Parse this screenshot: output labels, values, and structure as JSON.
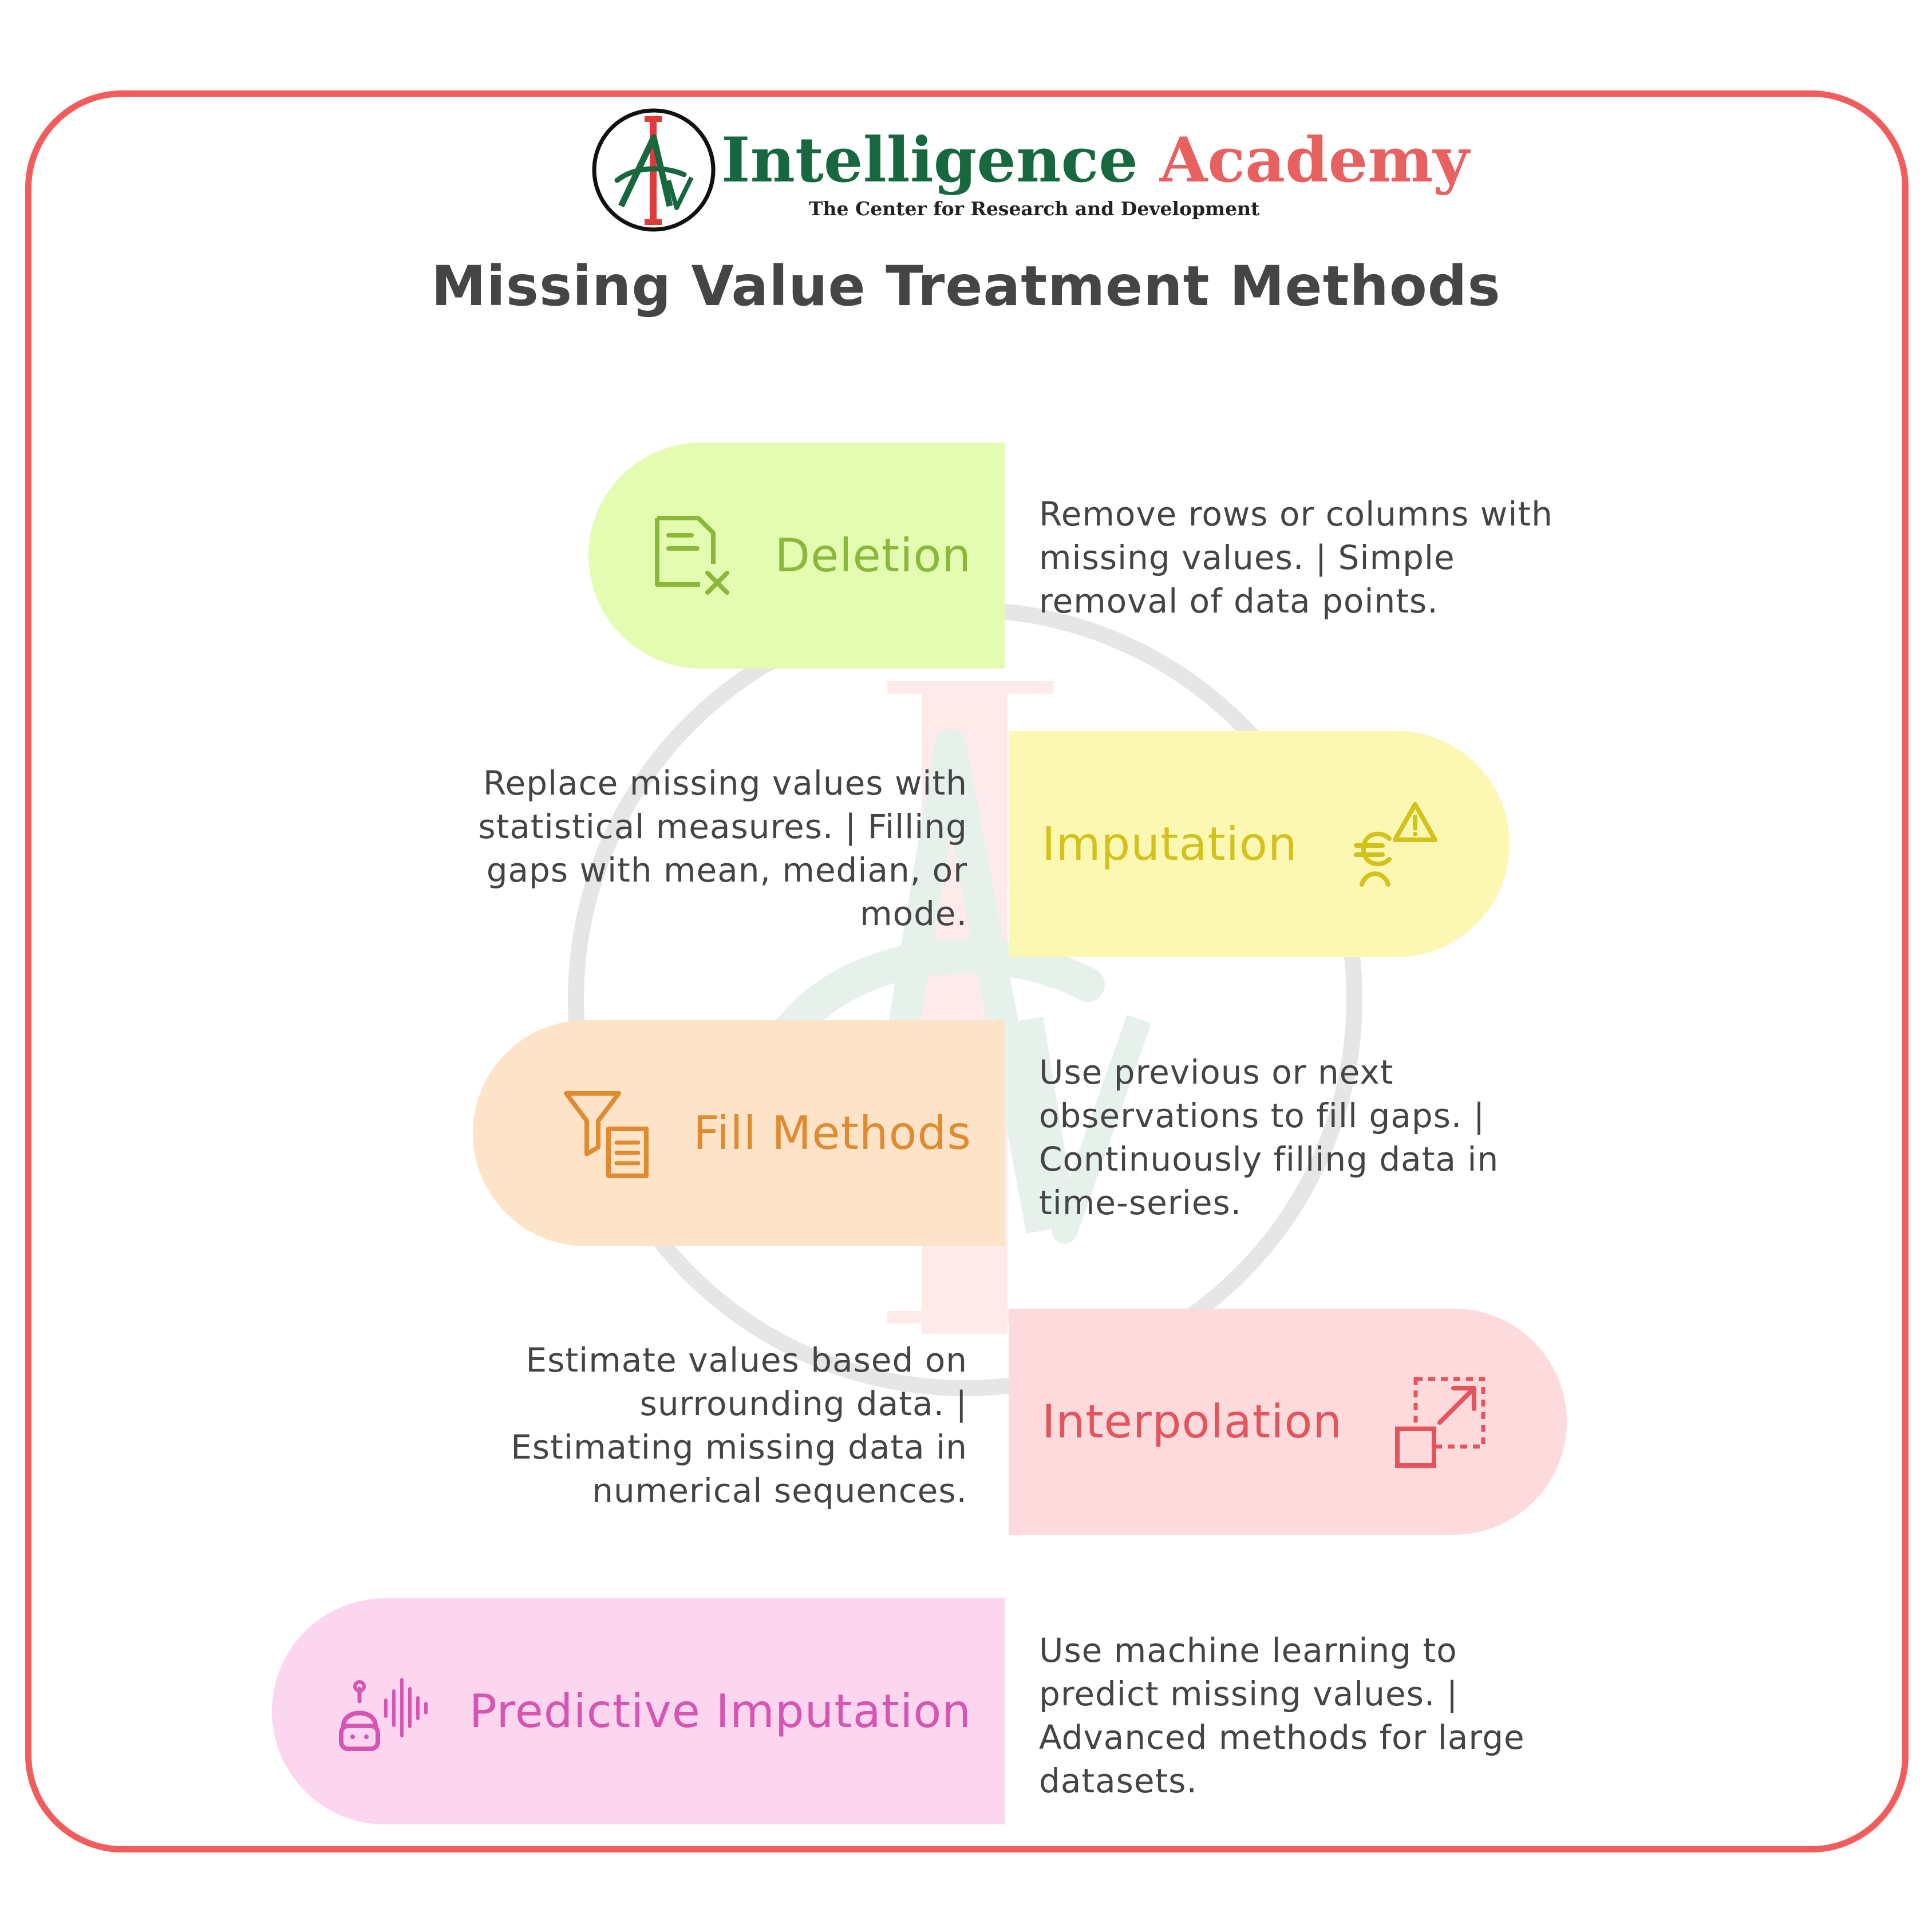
{
  "brand": {
    "name_part1": "Intelligence",
    "name_part2": "Academy",
    "tagline": "The Center for Research and Development",
    "logo_letters": "AI",
    "colors": {
      "green": "#17683f",
      "red": "#e86060",
      "frame": "#f25c5c"
    }
  },
  "title": "Missing Value Treatment Methods",
  "methods": [
    {
      "label": "Deletion",
      "icon": "document-x-icon",
      "description": "Remove rows or columns with missing values. | Simple removal of data points.",
      "fill": "#e4fbb2",
      "color": "#8cb83a"
    },
    {
      "label": "Imputation",
      "icon": "euro-warning-icon",
      "description": "Replace missing values with statistical measures. | Filling gaps with mean, median, or mode.",
      "fill": "#fdf7b4",
      "color": "#d3c21b"
    },
    {
      "label": "Fill Methods",
      "icon": "filter-list-icon",
      "description": "Use previous or next observations to fill gaps. | Continuously filling data in time-series.",
      "fill": "#fde3c8",
      "color": "#e08b30"
    },
    {
      "label": "Interpolation",
      "icon": "scale-expand-icon",
      "description": "Estimate values based on surrounding data. | Estimating missing data in numerical sequences.",
      "fill": "#fddadb",
      "color": "#e5545c"
    },
    {
      "label": "Predictive Imputation",
      "icon": "robot-voice-icon",
      "description": "Use machine learning to predict missing values. | Advanced methods for large datasets.",
      "fill": "#fcd6ee",
      "color": "#d655b2"
    }
  ]
}
